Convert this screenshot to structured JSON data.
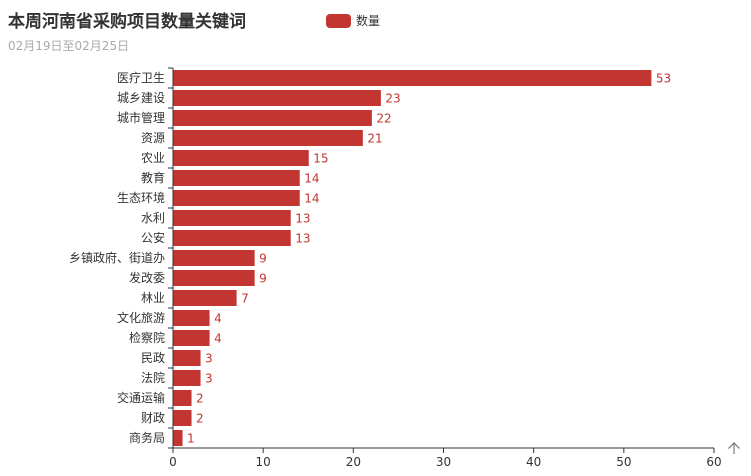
{
  "title": "本周河南省采购项目数量关键词",
  "subtitle": "02月19日至02月25日",
  "legend_label": "数量",
  "colors": {
    "bar": "#c23531",
    "axis": "#333333",
    "text": "#333333"
  },
  "corner_icon": "arrow-up-icon",
  "chart_data": {
    "type": "bar",
    "orientation": "horizontal",
    "categories": [
      "医疗卫生",
      "城乡建设",
      "城市管理",
      "资源",
      "农业",
      "教育",
      "生态环境",
      "水利",
      "公安",
      "乡镇政府、街道办",
      "发改委",
      "林业",
      "文化旅游",
      "检察院",
      "民政",
      "法院",
      "交通运输",
      "财政",
      "商务局"
    ],
    "series": [
      {
        "name": "数量",
        "values": [
          53,
          23,
          22,
          21,
          15,
          14,
          14,
          13,
          13,
          9,
          9,
          7,
          4,
          4,
          3,
          3,
          2,
          2,
          1
        ]
      }
    ],
    "xlim": [
      0,
      60
    ],
    "xticks": [
      0,
      10,
      20,
      30,
      40,
      50,
      60
    ],
    "grid": false,
    "legend_position": "top-center",
    "data_labels": true
  }
}
